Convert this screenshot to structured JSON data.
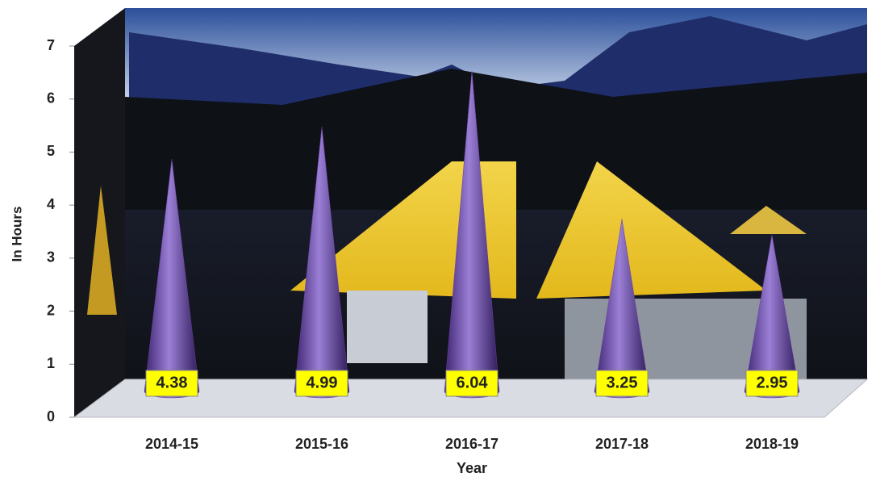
{
  "chart_data": {
    "type": "cone",
    "categories": [
      "2014-15",
      "2015-16",
      "2016-17",
      "2017-18",
      "2018-19"
    ],
    "values": [
      4.38,
      4.99,
      6.04,
      3.25,
      2.95
    ],
    "color": "#6a3fa8",
    "label_color": "#ffff00",
    "ylim": [
      0,
      7
    ],
    "yticks": [
      0,
      1,
      2,
      3,
      4,
      5,
      6,
      7
    ],
    "ylabel": "In Hours",
    "xlabel": "Year"
  }
}
